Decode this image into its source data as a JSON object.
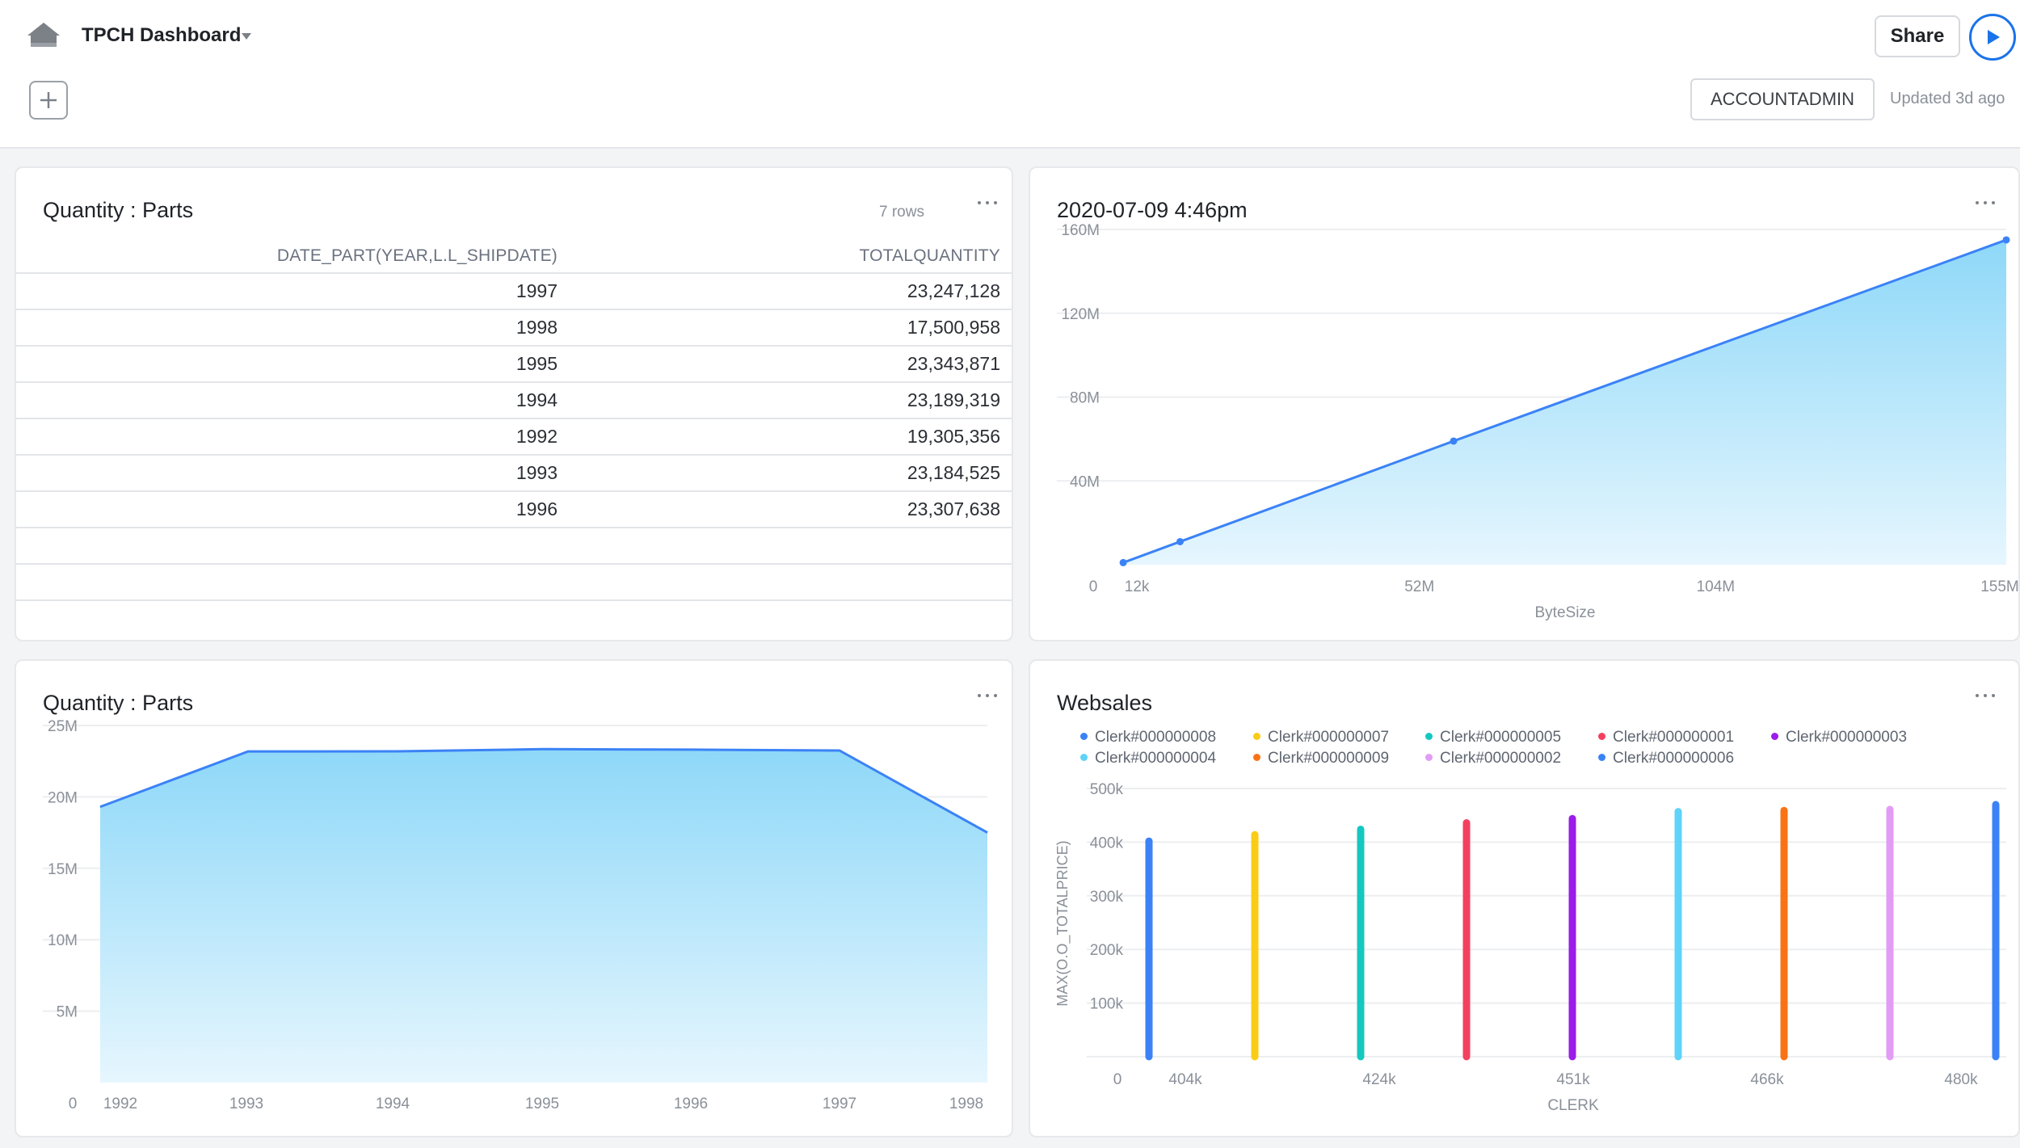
{
  "header": {
    "title": "TPCH Dashboard",
    "share_label": "Share",
    "role_label": "ACCOUNTADMIN",
    "updated_text": "Updated 3d ago"
  },
  "colors": {
    "accent": "#1a73e8",
    "line": "#3b82f6",
    "area_top": "#8ed8f8",
    "area_bottom": "#e6f6fe"
  },
  "panels": {
    "table": {
      "title": "Quantity : Parts",
      "row_count": "7 rows",
      "columns": [
        "DATE_PART(YEAR,L.L_SHIPDATE)",
        "TOTALQUANTITY"
      ],
      "rows": [
        [
          "1997",
          "23,247,128"
        ],
        [
          "1998",
          "17,500,958"
        ],
        [
          "1995",
          "23,343,871"
        ],
        [
          "1994",
          "23,189,319"
        ],
        [
          "1992",
          "19,305,356"
        ],
        [
          "1993",
          "23,184,525"
        ],
        [
          "1996",
          "23,307,638"
        ]
      ]
    },
    "bytes": {
      "title": "2020-07-09 4:46pm"
    },
    "area": {
      "title": "Quantity : Parts"
    },
    "websales": {
      "title": "Websales"
    }
  },
  "chart_data": [
    {
      "type": "area",
      "title": "2020-07-09 4:46pm",
      "xlabel": "ByteSize",
      "ylabel": "",
      "x_ticks": [
        "12k",
        "52M",
        "104M",
        "155M"
      ],
      "y_ticks": [
        "0",
        "40M",
        "80M",
        "120M",
        "160M"
      ],
      "xlim": [
        0,
        155000000
      ],
      "ylim": [
        0,
        160000000
      ],
      "points": [
        {
          "x": 12000,
          "y": 1000000
        },
        {
          "x": 10000000,
          "y": 11000000
        },
        {
          "x": 58000000,
          "y": 59000000
        },
        {
          "x": 155000000,
          "y": 155000000
        }
      ]
    },
    {
      "type": "area",
      "title": "Quantity : Parts",
      "xlabel": "",
      "ylabel": "",
      "categories": [
        "1992",
        "1993",
        "1994",
        "1995",
        "1996",
        "1997",
        "1998"
      ],
      "y_ticks": [
        "0",
        "5M",
        "10M",
        "15M",
        "20M",
        "25M"
      ],
      "ylim": [
        0,
        25000000
      ],
      "values": [
        19305356,
        23184525,
        23189319,
        23343871,
        23307638,
        23247128,
        17500958
      ]
    },
    {
      "type": "bar",
      "title": "Websales",
      "xlabel": "CLERK",
      "ylabel": "MAX(O.O_TOTALPRICE)",
      "x_ticks": [
        "404k",
        "424k",
        "451k",
        "466k",
        "480k"
      ],
      "y_ticks": [
        "0",
        "100k",
        "200k",
        "300k",
        "400k",
        "500k"
      ],
      "ylim": [
        0,
        500000
      ],
      "legend_position": "top",
      "series": [
        {
          "name": "Clerk#000000008",
          "color": "#3b82f6",
          "value": 408000
        },
        {
          "name": "Clerk#000000007",
          "color": "#facc15",
          "value": 420000
        },
        {
          "name": "Clerk#000000005",
          "color": "#14c8c0",
          "value": 430000
        },
        {
          "name": "Clerk#000000001",
          "color": "#f43f5e",
          "value": 442000
        },
        {
          "name": "Clerk#000000003",
          "color": "#9b1de8",
          "value": 450000
        },
        {
          "name": "Clerk#000000004",
          "color": "#5fd3f8",
          "value": 463000
        },
        {
          "name": "Clerk#000000009",
          "color": "#f97316",
          "value": 465000
        },
        {
          "name": "Clerk#000000002",
          "color": "#e39cf5",
          "value": 467000
        },
        {
          "name": "Clerk#000000006",
          "color": "#3b82f6",
          "value": 476000
        }
      ]
    }
  ]
}
